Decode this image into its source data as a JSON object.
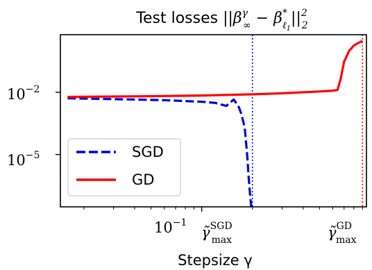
{
  "chart_data": {
    "type": "line",
    "title": {
      "prefix": "Test losses ",
      "math": "||β",
      "sup1": "γ",
      "sub1": "∞",
      "mid": " − β",
      "sup2": "*",
      "sub2": "ℓ",
      "sub2b": "1",
      "end": "||",
      "sup3": "2",
      "sub3": "2"
    },
    "xlabel": "Stepsize γ",
    "xscale": "log",
    "yscale": "log",
    "xlim": [
      0.0145,
      0.95
    ],
    "ylim": [
      3e-08,
      6
    ],
    "y_ticks": [
      {
        "value": 0.01,
        "base": "10",
        "exp": "−2"
      },
      {
        "value": 1e-05,
        "base": "10",
        "exp": "−5"
      }
    ],
    "x_ticks": [
      {
        "value": 0.1,
        "base": "10",
        "exp": "−1"
      }
    ],
    "annotations": [
      {
        "x": 0.2,
        "base": "γ̃",
        "sup": "SGD",
        "sub": "max",
        "color": "#0000ff"
      },
      {
        "x": 0.9,
        "base": "γ̃",
        "sup": "GD",
        "sub": "max",
        "color": "#ff0000"
      }
    ],
    "series": [
      {
        "name": "SGD",
        "color": "#0000dd",
        "style": "dashed",
        "x": [
          0.016,
          0.025,
          0.04,
          0.06,
          0.08,
          0.1,
          0.12,
          0.14,
          0.155,
          0.165,
          0.172,
          0.18,
          0.186,
          0.19,
          0.194,
          0.198
        ],
        "y": [
          0.0052,
          0.0048,
          0.0045,
          0.0042,
          0.0038,
          0.0035,
          0.0031,
          0.0022,
          0.0045,
          0.0022,
          0.0009,
          0.0002,
          1e-05,
          8e-07,
          1e-07,
          2e-08
        ]
      },
      {
        "name": "GD",
        "color": "#ff0000",
        "style": "solid",
        "x": [
          0.016,
          0.05,
          0.1,
          0.2,
          0.3,
          0.5,
          0.6,
          0.64,
          0.67,
          0.7,
          0.75,
          0.8,
          0.85,
          0.9
        ],
        "y": [
          0.006,
          0.0065,
          0.007,
          0.008,
          0.009,
          0.011,
          0.012,
          0.013,
          0.05,
          0.3,
          1.0,
          1.8,
          2.4,
          3.0
        ]
      }
    ],
    "legend": {
      "position": "lower-left",
      "entries": [
        "SGD",
        "GD"
      ]
    }
  }
}
